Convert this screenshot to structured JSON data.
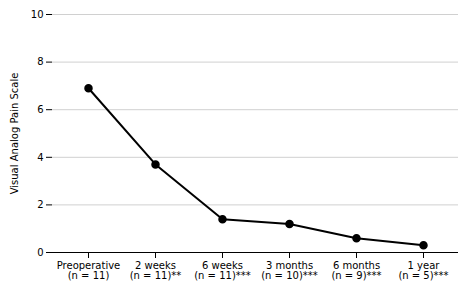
{
  "chart_data": {
    "type": "line",
    "ylabel": "Visual Analog Pain Scale",
    "categories": [
      "Preoperative\n(n = 11)",
      "2 weeks\n(n = 11)**",
      "6 weeks\n(n = 11)***",
      "3 months\n(n = 10)***",
      "6 months\n(n = 9)***",
      "1 year\n(n = 5)***"
    ],
    "values": [
      6.9,
      3.7,
      1.4,
      1.2,
      0.6,
      0.3
    ],
    "color": "#000000",
    "marker": "circle",
    "ylim": [
      0,
      10
    ],
    "yticks": [
      0,
      2,
      4,
      6,
      8,
      10
    ],
    "grid": true
  }
}
